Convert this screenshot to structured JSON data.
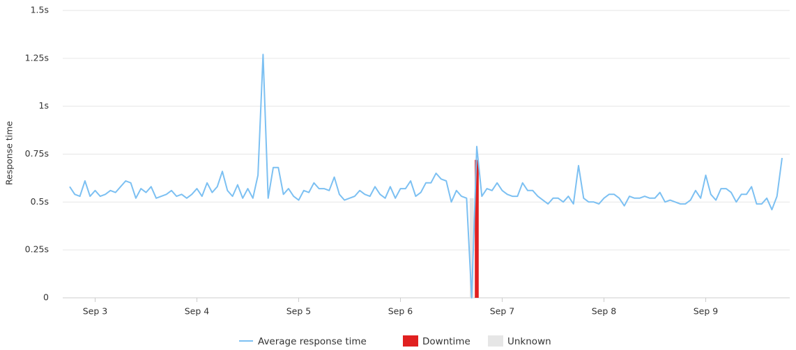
{
  "chart_data": {
    "type": "line",
    "y_axis_label": "Response time",
    "categories": [
      null,
      null,
      null,
      null,
      null,
      "Sep 3",
      null,
      null,
      null,
      null,
      null,
      null,
      null,
      null,
      null,
      null,
      null,
      null,
      null,
      null,
      null,
      null,
      null,
      null,
      null,
      "Sep 4",
      null,
      null,
      null,
      null,
      null,
      null,
      null,
      null,
      null,
      null,
      null,
      null,
      null,
      null,
      null,
      null,
      null,
      null,
      null,
      "Sep 5",
      null,
      null,
      null,
      null,
      null,
      null,
      null,
      null,
      null,
      null,
      null,
      null,
      null,
      null,
      null,
      null,
      null,
      null,
      null,
      "Sep 6",
      null,
      null,
      null,
      null,
      null,
      null,
      null,
      null,
      null,
      null,
      null,
      null,
      null,
      null,
      null,
      null,
      null,
      null,
      null,
      "Sep 7",
      null,
      null,
      null,
      null,
      null,
      null,
      null,
      null,
      null,
      null,
      null,
      null,
      null,
      null,
      null,
      null,
      null,
      null,
      null,
      "Sep 8",
      null,
      null,
      null,
      null,
      null,
      null,
      null,
      null,
      null,
      null,
      null,
      null,
      null,
      null,
      null,
      null,
      null,
      null,
      null,
      "Sep 9",
      null,
      null,
      null,
      null,
      null,
      null,
      null,
      null,
      null,
      null,
      null,
      null,
      null,
      null,
      null
    ],
    "series": [
      {
        "name": "Average response time",
        "type": "line",
        "color": "#7cc0f2",
        "values": [
          0.58,
          0.54,
          0.53,
          0.61,
          0.53,
          0.56,
          0.53,
          0.54,
          0.56,
          0.55,
          0.58,
          0.61,
          0.6,
          0.52,
          0.57,
          0.55,
          0.58,
          0.52,
          0.53,
          0.54,
          0.56,
          0.53,
          0.54,
          0.52,
          0.54,
          0.57,
          0.53,
          0.6,
          0.55,
          0.58,
          0.66,
          0.56,
          0.53,
          0.59,
          0.52,
          0.57,
          0.52,
          0.64,
          1.27,
          0.52,
          0.68,
          0.68,
          0.54,
          0.57,
          0.53,
          0.51,
          0.56,
          0.55,
          0.6,
          0.57,
          0.57,
          0.56,
          0.63,
          0.54,
          0.51,
          0.52,
          0.53,
          0.56,
          0.54,
          0.53,
          0.58,
          0.54,
          0.52,
          0.58,
          0.52,
          0.57,
          0.57,
          0.61,
          0.53,
          0.55,
          0.6,
          0.6,
          0.65,
          0.62,
          0.61,
          0.5,
          0.56,
          0.53,
          0.52,
          0,
          0.79,
          0.53,
          0.57,
          0.56,
          0.6,
          0.56,
          0.54,
          0.53,
          0.53,
          0.6,
          0.56,
          0.56,
          0.53,
          0.51,
          0.49,
          0.52,
          0.52,
          0.5,
          0.53,
          0.49,
          0.69,
          0.52,
          0.5,
          0.5,
          0.49,
          0.52,
          0.54,
          0.54,
          0.52,
          0.48,
          0.53,
          0.52,
          0.52,
          0.53,
          0.52,
          0.52,
          0.55,
          0.5,
          0.51,
          0.5,
          0.49,
          0.49,
          0.51,
          0.56,
          0.52,
          0.64,
          0.54,
          0.51,
          0.57,
          0.57,
          0.55,
          0.5,
          0.54,
          0.54,
          0.58,
          0.49,
          0.49,
          0.52,
          0.46,
          0.53,
          0.73
        ]
      },
      {
        "name": "Downtime",
        "type": "bar",
        "color": "#e02020",
        "values": [
          null,
          null,
          null,
          null,
          null,
          null,
          null,
          null,
          null,
          null,
          null,
          null,
          null,
          null,
          null,
          null,
          null,
          null,
          null,
          null,
          null,
          null,
          null,
          null,
          null,
          null,
          null,
          null,
          null,
          null,
          null,
          null,
          null,
          null,
          null,
          null,
          null,
          null,
          null,
          null,
          null,
          null,
          null,
          null,
          null,
          null,
          null,
          null,
          null,
          null,
          null,
          null,
          null,
          null,
          null,
          null,
          null,
          null,
          null,
          null,
          null,
          null,
          null,
          null,
          null,
          null,
          null,
          null,
          null,
          null,
          null,
          null,
          null,
          null,
          null,
          null,
          null,
          null,
          null,
          null,
          0.72,
          null,
          null,
          null,
          null,
          null,
          null,
          null,
          null,
          null,
          null,
          null,
          null,
          null,
          null,
          null,
          null,
          null,
          null,
          null,
          null,
          null,
          null,
          null,
          null,
          null,
          null,
          null,
          null,
          null,
          null,
          null,
          null,
          null,
          null,
          null,
          null,
          null,
          null,
          null,
          null,
          null,
          null,
          null,
          null,
          null,
          null,
          null,
          null,
          null,
          null,
          null,
          null,
          null,
          null,
          null,
          null,
          null,
          null,
          null,
          null
        ]
      },
      {
        "name": "Unknown",
        "type": "bar",
        "color": "#e6e6e6",
        "values": [
          null,
          null,
          null,
          null,
          null,
          null,
          null,
          null,
          null,
          null,
          null,
          null,
          null,
          null,
          null,
          null,
          null,
          null,
          null,
          null,
          null,
          null,
          null,
          null,
          null,
          null,
          null,
          null,
          null,
          null,
          null,
          null,
          null,
          null,
          null,
          null,
          null,
          null,
          null,
          null,
          null,
          null,
          null,
          null,
          null,
          null,
          null,
          null,
          null,
          null,
          null,
          null,
          null,
          null,
          null,
          null,
          null,
          null,
          null,
          null,
          null,
          null,
          null,
          null,
          null,
          null,
          null,
          null,
          null,
          null,
          null,
          null,
          null,
          null,
          null,
          null,
          null,
          null,
          null,
          0.52,
          null,
          null,
          null,
          null,
          null,
          null,
          null,
          null,
          null,
          null,
          null,
          null,
          null,
          null,
          null,
          null,
          null,
          null,
          null,
          null,
          null,
          null,
          null,
          null,
          null,
          null,
          null,
          null,
          null,
          null,
          null,
          null,
          null,
          null,
          null,
          null,
          null,
          null,
          null,
          null,
          null,
          null,
          null,
          null,
          null,
          null,
          null,
          null,
          null,
          null,
          null,
          null,
          null,
          null,
          null,
          null,
          null,
          null,
          null,
          null,
          null
        ]
      }
    ],
    "ylim": [
      0,
      1.5
    ],
    "yticks": [
      0,
      {
        "value": 0.25,
        "label": "0.25s"
      },
      {
        "value": 0.5,
        "label": "0.5s"
      },
      {
        "value": 0.75,
        "label": "0.75s"
      },
      {
        "value": 1,
        "label": "1s"
      },
      {
        "value": 1.25,
        "label": "1.25s"
      },
      {
        "value": 1.5,
        "label": "1.5s"
      }
    ],
    "grid": true,
    "legend": "bottom"
  }
}
